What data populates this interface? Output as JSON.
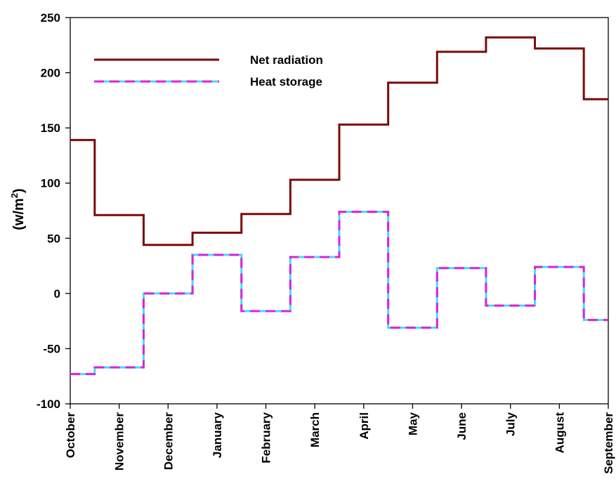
{
  "chart_data": {
    "type": "line",
    "step": true,
    "categories": [
      "October",
      "November",
      "December",
      "January",
      "February",
      "March",
      "April",
      "May",
      "June",
      "July",
      "August",
      "September"
    ],
    "ylabel_base": "(w/m",
    "ylabel_sup": "2",
    "ylabel_close": ")",
    "ylim": [
      -100,
      250
    ],
    "yticks": [
      -100,
      -50,
      0,
      50,
      100,
      150,
      200,
      250
    ],
    "grid": false,
    "legend_position": "top-left",
    "series": [
      {
        "name": "Net radiation",
        "color": "#7b0a0a",
        "style": "solid",
        "values": [
          139,
          71,
          44,
          55,
          72,
          103,
          153,
          191,
          219,
          232,
          222,
          176
        ]
      },
      {
        "name": "Heat storage",
        "color": "#e020d8",
        "dash_color": "#40e0f0",
        "style": "dashed",
        "values": [
          -73,
          -67,
          0,
          35,
          -16,
          33,
          74,
          -31,
          23,
          -11,
          24,
          -24
        ]
      }
    ]
  }
}
